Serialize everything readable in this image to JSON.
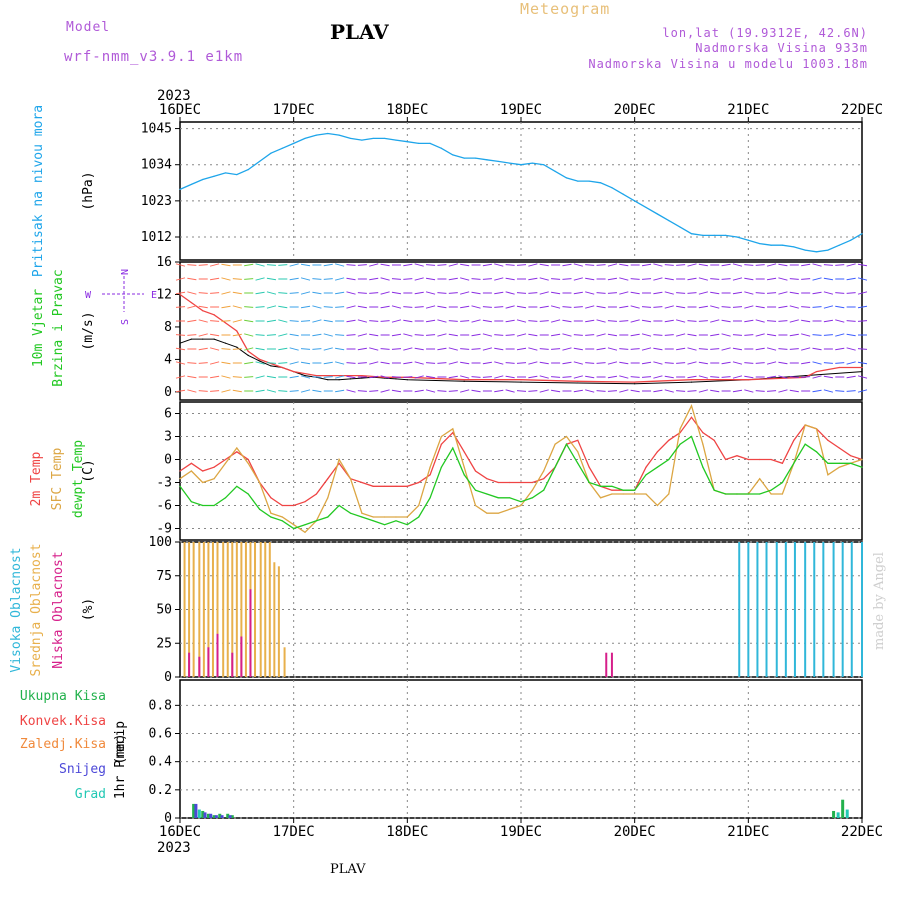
{
  "header": {
    "model_label": "Model",
    "model_name": "wrf-nmm_v3.9.1 e1km",
    "title": "Meteogram",
    "station": "PLAV",
    "coords": "lon,lat (19.9312E, 42.6N)",
    "altitude": "Nadmorska Visina 933m",
    "model_altitude": "Nadmorska Visina u modelu 1003.18m",
    "year_top": "2023",
    "year_bottom": "2023",
    "station_bottom": "PLAV",
    "credit": "made by Angel"
  },
  "colors": {
    "pressure": "#1ea5ea",
    "temp2m": "#ef4444",
    "sfc_temp": "#dca643",
    "dewpt": "#22c822",
    "high_cloud": "#30b7d9",
    "mid_cloud": "#e8b04c",
    "low_cloud": "#d61f8a",
    "total_precip": "#22b14c",
    "conv_precip": "#ef4444",
    "frozen_precip": "#f08a3c",
    "snow": "#4c48d8",
    "graupel": "#22c8b4",
    "wind_violet": "#8a2be2",
    "wind_blue": "#3b5bff",
    "grid": "#888888"
  },
  "chart_data": [
    {
      "type": "line",
      "panel": "pressure",
      "ylabel_lines": [
        "Pritisak na nivou mora"
      ],
      "unit": "(hPa)",
      "ylim": [
        1005,
        1047
      ],
      "yticks": [
        "1045",
        "1034",
        "1023",
        "1012"
      ],
      "ytick_values": [
        1045,
        1034,
        1023,
        1012
      ],
      "grid": true,
      "series": [
        {
          "color_key": "pressure",
          "x": [
            0,
            0.1,
            0.2,
            0.3,
            0.4,
            0.5,
            0.6,
            0.7,
            0.8,
            0.9,
            1.0,
            1.1,
            1.2,
            1.3,
            1.4,
            1.5,
            1.6,
            1.7,
            1.8,
            1.9,
            2.0,
            2.1,
            2.2,
            2.3,
            2.4,
            2.5,
            2.6,
            2.7,
            2.8,
            2.9,
            3.0,
            3.1,
            3.2,
            3.3,
            3.4,
            3.5,
            3.6,
            3.7,
            3.8,
            3.9,
            4.0,
            4.1,
            4.2,
            4.3,
            4.4,
            4.5,
            4.6,
            4.7,
            4.8,
            4.9,
            5.0,
            5.1,
            5.2,
            5.3,
            5.4,
            5.5,
            5.6,
            5.7,
            5.8,
            5.9,
            6.0
          ],
          "y": [
            1026.5,
            1028,
            1029.5,
            1030.5,
            1031.5,
            1031,
            1032.5,
            1035,
            1037.5,
            1039,
            1040.5,
            1042,
            1043,
            1043.5,
            1043,
            1042,
            1041.5,
            1042,
            1042,
            1041.5,
            1041,
            1040.5,
            1040.5,
            1039,
            1037,
            1036,
            1036,
            1035.5,
            1035,
            1034.5,
            1034,
            1034.5,
            1034,
            1032,
            1030,
            1029,
            1029,
            1028.5,
            1027,
            1025,
            1023,
            1021,
            1019,
            1017,
            1015,
            1013,
            1012.5,
            1012.5,
            1012.5,
            1012,
            1011,
            1010,
            1009.5,
            1009.5,
            1009,
            1008,
            1007.5,
            1008,
            1009.5,
            1011,
            1013
          ]
        }
      ]
    },
    {
      "type": "line",
      "panel": "wind",
      "ylabel_lines": [
        "10m Vjetar",
        "Brzina i Pravac"
      ],
      "unit": "(m/s)",
      "compass": [
        "N",
        "W",
        "E",
        "S"
      ],
      "ylim": [
        -1,
        16
      ],
      "yticks": [
        "16",
        "12",
        "8",
        "4",
        "0"
      ],
      "ytick_values": [
        16,
        12,
        8,
        4,
        0
      ],
      "grid": false,
      "series": [
        {
          "name": "",
          "color_key": "wind_black",
          "x": [
            0.0,
            0.1,
            0.2,
            0.3,
            0.4,
            0.5,
            0.6,
            0.7,
            0.8,
            0.9,
            1.0,
            1.1,
            1.2,
            1.3,
            1.4,
            1.5,
            1.6,
            1.7,
            1.8,
            1.9,
            2.0,
            2.5,
            3.0,
            3.5,
            4.0,
            4.5,
            5.0,
            5.5,
            6.0
          ],
          "y": [
            6,
            6.5,
            6.5,
            6.5,
            6,
            5.5,
            4.5,
            3.8,
            3.2,
            3,
            2.5,
            2,
            1.8,
            1.5,
            1.5,
            1.6,
            1.7,
            1.8,
            1.7,
            1.6,
            1.5,
            1.3,
            1.2,
            1.1,
            1.0,
            1.2,
            1.5,
            2,
            2.5
          ]
        },
        {
          "name": "",
          "color_key": "temp2m",
          "x": [
            0.0,
            0.1,
            0.2,
            0.3,
            0.4,
            0.5,
            0.6,
            0.7,
            0.8,
            1.0,
            1.2,
            1.4,
            1.6,
            1.8,
            2.0,
            2.5,
            3.0,
            3.5,
            4.0,
            4.5,
            5.0,
            5.5,
            5.6,
            5.8,
            6.0
          ],
          "y": [
            12,
            11,
            10,
            9.5,
            8.5,
            7.5,
            5,
            4,
            3.5,
            2.5,
            2,
            2,
            2,
            1.8,
            1.8,
            1.5,
            1.5,
            1.3,
            1.2,
            1.5,
            1.5,
            1.8,
            2.5,
            3,
            3
          ]
        }
      ]
    },
    {
      "type": "line",
      "panel": "temperature",
      "ylabel_lines": [
        "2m Temp",
        "SFC Temp",
        "dewpt Temp"
      ],
      "unit": "(C)",
      "ylim": [
        -10.5,
        7.5
      ],
      "yticks": [
        "6",
        "3",
        "0",
        "-3",
        "-6",
        "-9"
      ],
      "ytick_values": [
        6,
        3,
        0,
        -3,
        -6,
        -9
      ],
      "grid": true,
      "series": [
        {
          "name": "2m Temp",
          "color_key": "temp2m",
          "x": [
            0,
            0.1,
            0.2,
            0.3,
            0.4,
            0.5,
            0.6,
            0.7,
            0.8,
            0.9,
            1.0,
            1.1,
            1.2,
            1.3,
            1.4,
            1.5,
            1.6,
            1.7,
            1.8,
            1.9,
            2.0,
            2.1,
            2.2,
            2.3,
            2.4,
            2.5,
            2.6,
            2.7,
            2.8,
            2.9,
            3.0,
            3.1,
            3.2,
            3.3,
            3.4,
            3.5,
            3.6,
            3.7,
            3.8,
            3.9,
            4.0,
            4.1,
            4.2,
            4.3,
            4.4,
            4.5,
            4.6,
            4.7,
            4.8,
            4.9,
            5.0,
            5.1,
            5.2,
            5.3,
            5.4,
            5.5,
            5.6,
            5.7,
            5.8,
            5.9,
            6.0
          ],
          "y": [
            -1.5,
            -0.5,
            -1.5,
            -1,
            0,
            1,
            0,
            -3,
            -5,
            -6,
            -6,
            -5.5,
            -4.5,
            -2.5,
            -0.5,
            -2.5,
            -3,
            -3.5,
            -3.5,
            -3.5,
            -3.5,
            -3,
            -2,
            2,
            3.5,
            1,
            -1.5,
            -2.5,
            -3,
            -3,
            -3,
            -3,
            -2.5,
            -1,
            2,
            2.5,
            -1,
            -3.5,
            -4,
            -4,
            -4,
            -1,
            1,
            2.5,
            3.5,
            5.5,
            3.5,
            2.5,
            0,
            0.5,
            0,
            0,
            0,
            -0.5,
            2.5,
            4.5,
            4,
            2.5,
            1.5,
            0.5,
            0
          ]
        },
        {
          "name": "SFC Temp",
          "color_key": "sfc_temp",
          "x": [
            0,
            0.1,
            0.2,
            0.3,
            0.4,
            0.5,
            0.6,
            0.7,
            0.8,
            0.9,
            1.0,
            1.1,
            1.2,
            1.3,
            1.4,
            1.5,
            1.6,
            1.7,
            1.8,
            1.9,
            2.0,
            2.1,
            2.2,
            2.3,
            2.4,
            2.5,
            2.6,
            2.7,
            2.8,
            2.9,
            3.0,
            3.1,
            3.2,
            3.3,
            3.4,
            3.5,
            3.6,
            3.7,
            3.8,
            3.9,
            4.0,
            4.1,
            4.2,
            4.3,
            4.4,
            4.5,
            4.6,
            4.7,
            4.8,
            4.9,
            5.0,
            5.1,
            5.2,
            5.3,
            5.4,
            5.5,
            5.6,
            5.7,
            5.8,
            5.9,
            6.0
          ],
          "y": [
            -2.5,
            -1.5,
            -3,
            -2.5,
            -0.5,
            1.5,
            -0.5,
            -3,
            -7,
            -7.5,
            -8.5,
            -9.5,
            -8,
            -5,
            0,
            -2.5,
            -7,
            -7.5,
            -7.5,
            -7.5,
            -7.5,
            -6,
            -1,
            3,
            4,
            -1,
            -6,
            -7,
            -7,
            -6.5,
            -6,
            -4,
            -1.5,
            2,
            3,
            1,
            -3,
            -5,
            -4.5,
            -4.5,
            -4.5,
            -4.5,
            -6,
            -4.5,
            4,
            7,
            2,
            -4,
            -4.5,
            -4.5,
            -4.5,
            -2.5,
            -4.5,
            -4.5,
            -0.5,
            4.5,
            4,
            -2,
            -1,
            -0.5,
            0
          ]
        },
        {
          "name": "dewpt Temp",
          "color_key": "dewpt",
          "x": [
            0,
            0.1,
            0.2,
            0.3,
            0.4,
            0.5,
            0.6,
            0.7,
            0.8,
            0.9,
            1.0,
            1.1,
            1.2,
            1.3,
            1.4,
            1.5,
            1.6,
            1.7,
            1.8,
            1.9,
            2.0,
            2.1,
            2.2,
            2.3,
            2.4,
            2.5,
            2.6,
            2.7,
            2.8,
            2.9,
            3.0,
            3.1,
            3.2,
            3.3,
            3.4,
            3.5,
            3.6,
            3.7,
            3.8,
            3.9,
            4.0,
            4.1,
            4.2,
            4.3,
            4.4,
            4.5,
            4.6,
            4.7,
            4.8,
            4.9,
            5.0,
            5.1,
            5.2,
            5.3,
            5.4,
            5.5,
            5.6,
            5.7,
            5.8,
            5.9,
            6.0
          ],
          "y": [
            -3.5,
            -5.5,
            -6,
            -6,
            -5,
            -3.5,
            -4.5,
            -6.5,
            -7.5,
            -8,
            -9,
            -8.5,
            -8,
            -7.5,
            -6,
            -7,
            -7.5,
            -8,
            -8.5,
            -8,
            -8.5,
            -7.5,
            -5,
            -1,
            1.5,
            -2,
            -4,
            -4.5,
            -5,
            -5,
            -5.5,
            -5,
            -4,
            -1,
            2,
            -0.5,
            -3,
            -3.5,
            -3.5,
            -4,
            -4,
            -2,
            -1,
            0,
            2,
            3,
            -1,
            -4,
            -4.5,
            -4.5,
            -4.5,
            -4.5,
            -4,
            -3,
            -0.5,
            2,
            1,
            -0.5,
            -0.5,
            -0.5,
            -1
          ]
        }
      ]
    },
    {
      "type": "bar",
      "panel": "clouds",
      "ylabel_lines": [
        "Visoka Oblacnost",
        "Srednja Oblacnost",
        "Niska Oblacnost"
      ],
      "unit": "(%)",
      "ylim": [
        0,
        100
      ],
      "yticks": [
        "100",
        "75",
        "50",
        "25",
        "0"
      ],
      "ytick_values": [
        100,
        75,
        50,
        25,
        0
      ],
      "grid": true,
      "series": [
        {
          "name": "Srednja Oblacnost",
          "color_key": "mid_cloud",
          "x": [
            0.04,
            0.08,
            0.12,
            0.17,
            0.21,
            0.25,
            0.29,
            0.33,
            0.38,
            0.42,
            0.46,
            0.5,
            0.54,
            0.58,
            0.62,
            0.66,
            0.71,
            0.75,
            0.79,
            0.83,
            0.87,
            0.92
          ],
          "values": [
            100,
            100,
            100,
            100,
            100,
            100,
            100,
            100,
            100,
            100,
            100,
            100,
            100,
            100,
            100,
            100,
            100,
            100,
            100,
            85,
            82,
            22
          ]
        },
        {
          "name": "Niska Oblacnost",
          "color_key": "low_cloud",
          "x": [
            0.08,
            0.17,
            0.25,
            0.33,
            0.46,
            0.54,
            0.62,
            3.75,
            3.8
          ],
          "values": [
            18,
            15,
            22,
            32,
            18,
            30,
            65,
            18,
            18
          ]
        },
        {
          "name": "Visoka Oblacnost",
          "color_key": "high_cloud",
          "x": [
            4.92,
            5.0,
            5.08,
            5.16,
            5.25,
            5.33,
            5.41,
            5.5,
            5.58,
            5.66,
            5.75,
            5.83,
            5.91,
            6.0
          ],
          "values": [
            100,
            100,
            100,
            100,
            100,
            100,
            100,
            100,
            100,
            100,
            100,
            100,
            100,
            100
          ]
        }
      ]
    },
    {
      "type": "bar",
      "panel": "precip",
      "ylabel_lines": [
        "1hr Precip"
      ],
      "unit": "(mm)",
      "legend": [
        "Ukupna Kisa",
        "Konvek.Kisa",
        "Zaledj.Kisa",
        "Snijeg",
        "Grad"
      ],
      "ylim": [
        0,
        0.98
      ],
      "yticks": [
        "0.8",
        "0.6",
        "0.4",
        "0.2",
        "0"
      ],
      "ytick_values": [
        0.8,
        0.6,
        0.4,
        0.2,
        0
      ],
      "grid": true,
      "series": [
        {
          "name": "Ukupna Kisa",
          "color_key": "total_precip",
          "x": [
            0.12,
            0.2,
            0.25,
            0.3,
            0.35,
            0.42,
            0.46,
            5.75,
            5.83
          ],
          "values": [
            0.1,
            0.05,
            0.03,
            0.02,
            0.03,
            0.03,
            0.02,
            0.05,
            0.13
          ]
        },
        {
          "name": "Snijeg",
          "color_key": "snow",
          "x": [
            0.14,
            0.22,
            0.27,
            0.32,
            0.37,
            0.44
          ],
          "values": [
            0.1,
            0.04,
            0.03,
            0.02,
            0.02,
            0.02
          ]
        },
        {
          "name": "Grad",
          "color_key": "graupel",
          "x": [
            0.17,
            5.79,
            5.87
          ],
          "values": [
            0.06,
            0.04,
            0.06
          ]
        }
      ]
    }
  ],
  "xaxis": {
    "ticks_top": [
      "16DEC",
      "17DEC",
      "18DEC",
      "19DEC",
      "20DEC",
      "21DEC",
      "22DEC"
    ],
    "ticks_bottom": [
      "16DEC",
      "17DEC",
      "18DEC",
      "19DEC",
      "20DEC",
      "21DEC",
      "22DEC"
    ],
    "tick_values": [
      0,
      1,
      2,
      3,
      4,
      5,
      6
    ],
    "range": [
      0,
      6
    ]
  }
}
